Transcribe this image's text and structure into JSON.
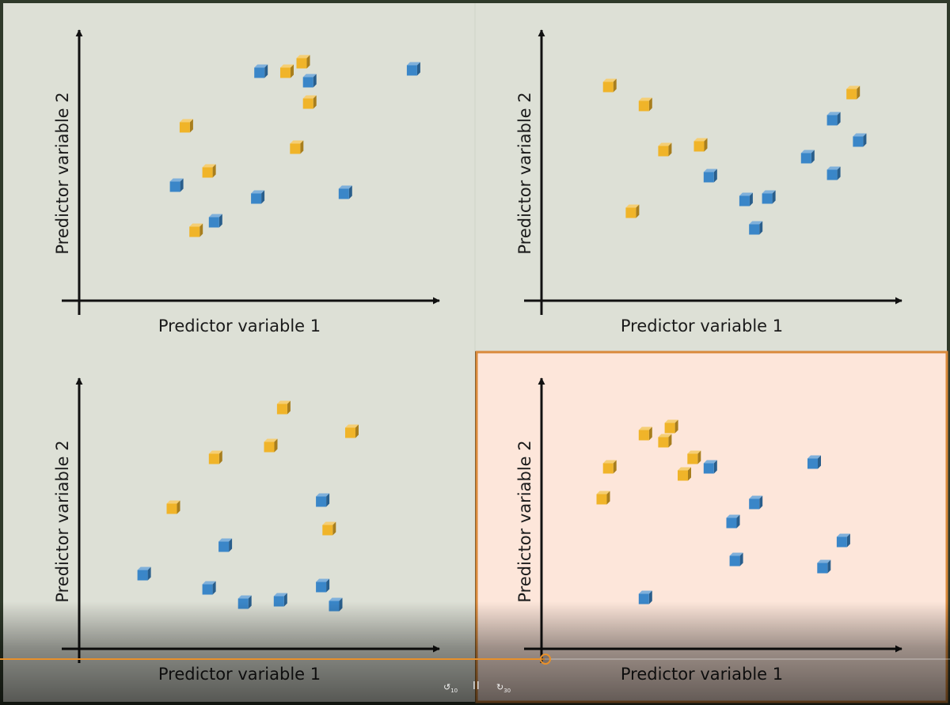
{
  "chart_data": [
    {
      "type": "scatter",
      "xlabel": "Predictor variable 1",
      "ylabel": "Predictor variable 2",
      "xlim": [
        0,
        100
      ],
      "ylim": [
        0,
        100
      ],
      "highlighted": false,
      "series": [
        {
          "class": "orange",
          "color": "#f0b429",
          "points": [
            [
              24,
              63
            ],
            [
              31,
              44
            ],
            [
              27,
              19
            ],
            [
              55,
              86
            ],
            [
              60,
              90
            ],
            [
              62,
              73
            ],
            [
              58,
              54
            ]
          ]
        },
        {
          "class": "blue",
          "color": "#3a86c8",
          "points": [
            [
              47,
              86
            ],
            [
              62,
              82
            ],
            [
              94,
              87
            ],
            [
              21,
              38
            ],
            [
              33,
              23
            ],
            [
              46,
              33
            ],
            [
              73,
              35
            ]
          ]
        }
      ]
    },
    {
      "type": "scatter",
      "xlabel": "Predictor variable 1",
      "ylabel": "Predictor variable 2",
      "xlim": [
        0,
        100
      ],
      "ylim": [
        0,
        100
      ],
      "highlighted": false,
      "series": [
        {
          "class": "orange",
          "color": "#f0b429",
          "points": [
            [
              12,
              80
            ],
            [
              23,
              72
            ],
            [
              29,
              53
            ],
            [
              40,
              55
            ],
            [
              19,
              27
            ],
            [
              87,
              77
            ]
          ]
        },
        {
          "class": "blue",
          "color": "#3a86c8",
          "points": [
            [
              43,
              42
            ],
            [
              54,
              32
            ],
            [
              61,
              33
            ],
            [
              57,
              20
            ],
            [
              73,
              50
            ],
            [
              81,
              43
            ],
            [
              81,
              66
            ],
            [
              89,
              57
            ]
          ]
        }
      ]
    },
    {
      "type": "scatter",
      "xlabel": "Predictor variable 1",
      "ylabel": "Predictor variable 2",
      "xlim": [
        0,
        100
      ],
      "ylim": [
        0,
        100
      ],
      "highlighted": false,
      "series": [
        {
          "class": "orange",
          "color": "#f0b429",
          "points": [
            [
              54,
              91
            ],
            [
              75,
              81
            ],
            [
              33,
              70
            ],
            [
              50,
              75
            ],
            [
              20,
              49
            ],
            [
              68,
              40
            ]
          ]
        },
        {
          "class": "blue",
          "color": "#3a86c8",
          "points": [
            [
              66,
              52
            ],
            [
              36,
              33
            ],
            [
              11,
              21
            ],
            [
              31,
              15
            ],
            [
              42,
              9
            ],
            [
              53,
              10
            ],
            [
              66,
              16
            ],
            [
              70,
              8
            ]
          ]
        }
      ]
    },
    {
      "type": "scatter",
      "xlabel": "Predictor variable 1",
      "ylabel": "Predictor variable 2",
      "xlim": [
        0,
        100
      ],
      "ylim": [
        0,
        100
      ],
      "highlighted": true,
      "series": [
        {
          "class": "orange",
          "color": "#f0b429",
          "points": [
            [
              12,
              66
            ],
            [
              10,
              53
            ],
            [
              23,
              80
            ],
            [
              31,
              83
            ],
            [
              29,
              77
            ],
            [
              38,
              70
            ],
            [
              35,
              63
            ]
          ]
        },
        {
          "class": "blue",
          "color": "#3a86c8",
          "points": [
            [
              43,
              66
            ],
            [
              75,
              68
            ],
            [
              57,
              51
            ],
            [
              50,
              43
            ],
            [
              51,
              27
            ],
            [
              84,
              35
            ],
            [
              78,
              24
            ],
            [
              23,
              11
            ]
          ]
        }
      ]
    }
  ],
  "player": {
    "progress": 0.573,
    "rewind_label": "10",
    "pause_label": "II",
    "forward_label": "30"
  }
}
